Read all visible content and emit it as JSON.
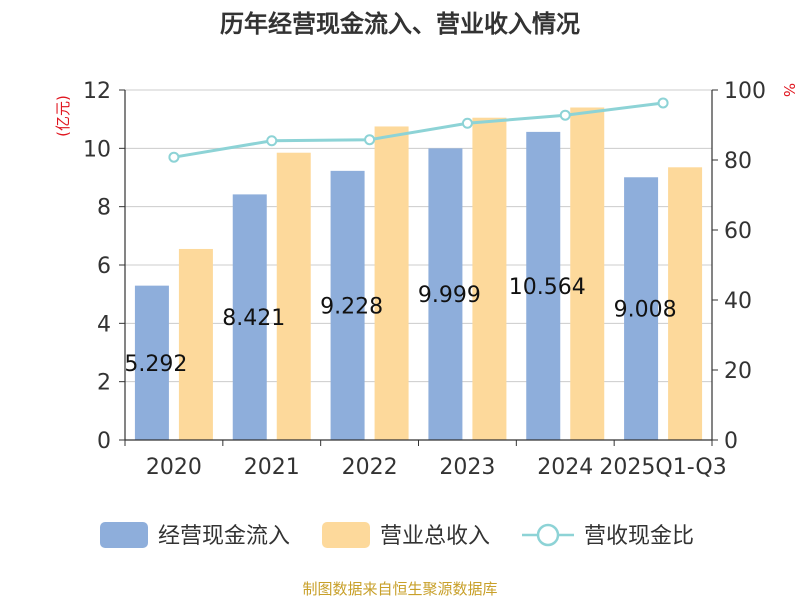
{
  "chart_data": {
    "type": "bar",
    "title": "历年经营现金流入、营业收入情况",
    "left_unit": "(亿元)",
    "right_unit": "%",
    "categories": [
      "2020",
      "2021",
      "2022",
      "2023",
      "2024",
      "2025Q1-Q3"
    ],
    "left_axis": {
      "min": 0,
      "max": 12,
      "ticks": [
        "0",
        "2",
        "4",
        "6",
        "8",
        "10",
        "12"
      ]
    },
    "right_axis": {
      "min": 0,
      "max": 100,
      "ticks": [
        "0",
        "20",
        "40",
        "60",
        "80",
        "100"
      ]
    },
    "series": [
      {
        "name": "经营现金流入",
        "type": "bar",
        "axis": "left",
        "color": "#8eaedb",
        "values": [
          5.292,
          8.421,
          9.228,
          9.999,
          10.564,
          9.008
        ],
        "labels": [
          "5.292",
          "8.421",
          "9.228",
          "9.999",
          "10.564",
          "9.008"
        ]
      },
      {
        "name": "营业总收入",
        "type": "bar",
        "axis": "left",
        "color": "#fdd99b",
        "values": [
          6.55,
          9.85,
          10.75,
          11.05,
          11.4,
          9.35
        ]
      },
      {
        "name": "营收现金比",
        "type": "line",
        "axis": "right",
        "color": "#8dd3d6",
        "values": [
          80.8,
          85.5,
          85.8,
          90.5,
          92.8,
          96.3
        ]
      }
    ],
    "legend_position": "bottom",
    "grid": true
  },
  "footer": {
    "source": "制图数据来自恒生聚源数据库"
  },
  "colors": {
    "title": "#333333",
    "axis_text": "#333333",
    "left_unit": "#e0141e",
    "right_unit": "#e0141e",
    "grid": "#cccccc",
    "footer": "#c8a02a"
  }
}
